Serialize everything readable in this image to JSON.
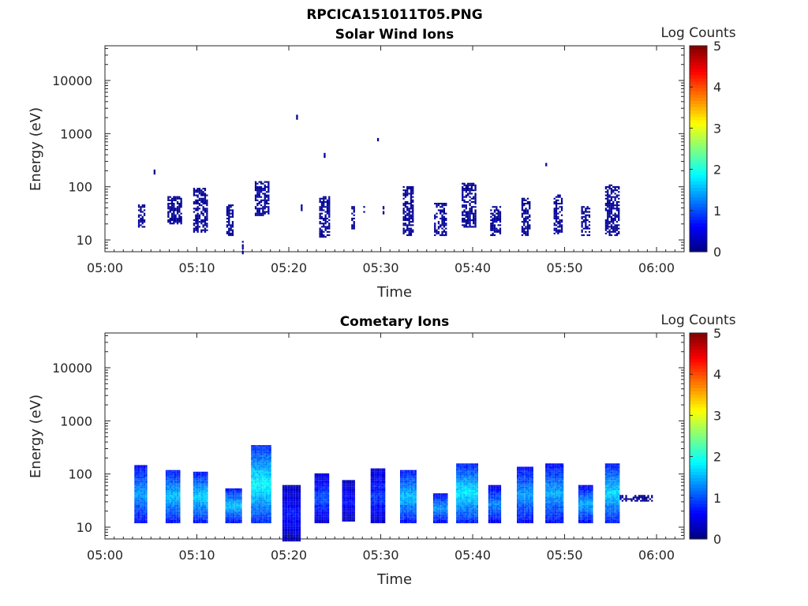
{
  "figure_title": "RPCICA151011T05.PNG",
  "chart_data": [
    {
      "type": "heatmap",
      "title": "Solar Wind Ions",
      "xlabel": "Time",
      "ylabel": "Energy (eV)",
      "x_ticks": [
        "05:00",
        "05:10",
        "05:20",
        "05:30",
        "05:40",
        "05:50",
        "06:00"
      ],
      "y_ticks": [
        "10",
        "100",
        "1000",
        "10000"
      ],
      "y_scale": "log",
      "ylim": [
        6,
        45000
      ],
      "xlim_minutes": [
        0,
        63
      ],
      "colorbar": {
        "label": "Log Counts",
        "ticks": [
          "0",
          "1",
          "2",
          "3",
          "4",
          "5"
        ],
        "range": [
          0,
          5
        ]
      },
      "bursts": [
        {
          "t0": 3.6,
          "t1": 4.4,
          "emin": 18,
          "emax": 42,
          "level": 0.1
        },
        {
          "t0": 5.3,
          "t1": 5.4,
          "emin": 180,
          "emax": 195,
          "level": 0.1
        },
        {
          "t0": 6.8,
          "t1": 8.3,
          "emin": 22,
          "emax": 60,
          "level": 0.1
        },
        {
          "t0": 9.6,
          "t1": 11.2,
          "emin": 15,
          "emax": 85,
          "level": 0.1
        },
        {
          "t0": 13.2,
          "t1": 14.0,
          "emin": 13,
          "emax": 42,
          "level": 0.1
        },
        {
          "t0": 14.9,
          "t1": 15.1,
          "emin": 6,
          "emax": 11,
          "level": 0.1
        },
        {
          "t0": 16.3,
          "t1": 17.9,
          "emin": 30,
          "emax": 120,
          "level": 0.15
        },
        {
          "t0": 20.8,
          "t1": 20.9,
          "emin": 1900,
          "emax": 2050,
          "level": 0.1
        },
        {
          "t0": 21.3,
          "t1": 21.4,
          "emin": 38,
          "emax": 42,
          "level": 0.1
        },
        {
          "t0": 23.3,
          "t1": 24.4,
          "emin": 12,
          "emax": 60,
          "level": 0.1
        },
        {
          "t0": 23.8,
          "t1": 23.9,
          "emin": 370,
          "emax": 400,
          "level": 0.1
        },
        {
          "t0": 26.8,
          "t1": 27.1,
          "emin": 17,
          "emax": 40,
          "level": 0.1
        },
        {
          "t0": 28.1,
          "t1": 28.2,
          "emin": 34,
          "emax": 40,
          "level": 0.1
        },
        {
          "t0": 29.6,
          "t1": 29.7,
          "emin": 780,
          "emax": 840,
          "level": 0.1
        },
        {
          "t0": 30.2,
          "t1": 30.3,
          "emin": 34,
          "emax": 40,
          "level": 0.1
        },
        {
          "t0": 32.4,
          "t1": 33.6,
          "emin": 13,
          "emax": 95,
          "level": 0.1
        },
        {
          "t0": 35.8,
          "t1": 37.1,
          "emin": 13,
          "emax": 45,
          "level": 0.1
        },
        {
          "t0": 38.8,
          "t1": 40.4,
          "emin": 18,
          "emax": 110,
          "level": 0.1
        },
        {
          "t0": 41.9,
          "t1": 43.1,
          "emin": 13,
          "emax": 40,
          "level": 0.1
        },
        {
          "t0": 45.3,
          "t1": 46.3,
          "emin": 13,
          "emax": 55,
          "level": 0.1
        },
        {
          "t0": 47.9,
          "t1": 48.0,
          "emin": 240,
          "emax": 255,
          "level": 0.1
        },
        {
          "t0": 48.8,
          "t1": 49.7,
          "emin": 14,
          "emax": 65,
          "level": 0.1
        },
        {
          "t0": 51.8,
          "t1": 52.8,
          "emin": 13,
          "emax": 40,
          "level": 0.1
        },
        {
          "t0": 54.4,
          "t1": 55.9,
          "emin": 13,
          "emax": 105,
          "level": 0.1
        }
      ]
    },
    {
      "type": "heatmap",
      "title": "Cometary Ions",
      "xlabel": "Time",
      "ylabel": "Energy (eV)",
      "x_ticks": [
        "05:00",
        "05:10",
        "05:20",
        "05:30",
        "05:40",
        "05:50",
        "06:00"
      ],
      "y_ticks": [
        "10",
        "100",
        "1000",
        "10000"
      ],
      "y_scale": "log",
      "ylim": [
        6,
        45000
      ],
      "xlim_minutes": [
        0,
        63
      ],
      "colorbar": {
        "label": "Log Counts",
        "ticks": [
          "0",
          "1",
          "2",
          "3",
          "4",
          "5"
        ],
        "range": [
          0,
          5
        ]
      },
      "bursts": [
        {
          "t0": 3.2,
          "t1": 4.6,
          "emin": 13,
          "emax": 140,
          "level": 1.4
        },
        {
          "t0": 6.6,
          "t1": 8.2,
          "emin": 13,
          "emax": 110,
          "level": 1.6
        },
        {
          "t0": 9.6,
          "t1": 11.2,
          "emin": 13,
          "emax": 100,
          "level": 1.7
        },
        {
          "t0": 13.1,
          "t1": 14.8,
          "emin": 13,
          "emax": 50,
          "level": 1.6
        },
        {
          "t0": 15.9,
          "t1": 18.0,
          "emin": 13,
          "emax": 320,
          "level": 1.9
        },
        {
          "t0": 19.3,
          "t1": 21.3,
          "emin": 6,
          "emax": 55,
          "level": 0.7
        },
        {
          "t0": 22.8,
          "t1": 24.3,
          "emin": 13,
          "emax": 95,
          "level": 1.0
        },
        {
          "t0": 25.8,
          "t1": 27.2,
          "emin": 14,
          "emax": 70,
          "level": 0.7
        },
        {
          "t0": 28.9,
          "t1": 30.4,
          "emin": 13,
          "emax": 120,
          "level": 0.9
        },
        {
          "t0": 32.1,
          "t1": 33.9,
          "emin": 13,
          "emax": 110,
          "level": 1.6
        },
        {
          "t0": 35.7,
          "t1": 37.2,
          "emin": 13,
          "emax": 40,
          "level": 1.4
        },
        {
          "t0": 38.2,
          "t1": 40.5,
          "emin": 13,
          "emax": 150,
          "level": 1.8
        },
        {
          "t0": 41.7,
          "t1": 43.1,
          "emin": 13,
          "emax": 55,
          "level": 1.3
        },
        {
          "t0": 44.8,
          "t1": 46.5,
          "emin": 13,
          "emax": 130,
          "level": 1.4
        },
        {
          "t0": 47.9,
          "t1": 49.9,
          "emin": 13,
          "emax": 145,
          "level": 1.5
        },
        {
          "t0": 51.5,
          "t1": 53.1,
          "emin": 13,
          "emax": 55,
          "level": 1.5
        },
        {
          "t0": 54.4,
          "t1": 55.9,
          "emin": 13,
          "emax": 150,
          "level": 1.7
        },
        {
          "t0": 56.0,
          "t1": 59.6,
          "emin": 33,
          "emax": 37,
          "level": 0.1
        }
      ]
    }
  ]
}
